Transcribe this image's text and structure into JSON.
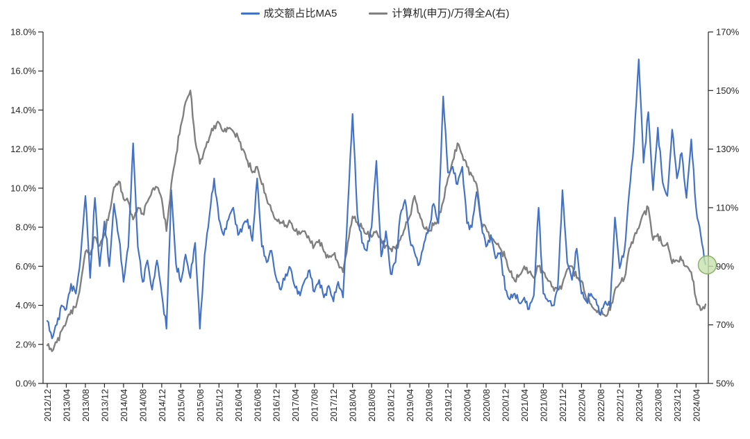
{
  "chart_data": {
    "type": "line",
    "title": "",
    "legend_position": "top",
    "gridlines": false,
    "background": "#ffffff",
    "axis_color": "#262626",
    "label_color": "#262626",
    "categories": [
      "2012/12",
      "2013/01",
      "2013/02",
      "2013/03",
      "2013/04",
      "2013/05",
      "2013/06",
      "2013/07",
      "2013/08",
      "2013/09",
      "2013/10",
      "2013/11",
      "2013/12",
      "2014/01",
      "2014/02",
      "2014/03",
      "2014/04",
      "2014/05",
      "2014/06",
      "2014/07",
      "2014/08",
      "2014/09",
      "2014/10",
      "2014/11",
      "2014/12",
      "2015/01",
      "2015/02",
      "2015/03",
      "2015/04",
      "2015/05",
      "2015/06",
      "2015/07",
      "2015/08",
      "2015/09",
      "2015/10",
      "2015/11",
      "2015/12",
      "2016/01",
      "2016/02",
      "2016/03",
      "2016/04",
      "2016/05",
      "2016/06",
      "2016/07",
      "2016/08",
      "2016/09",
      "2016/10",
      "2016/11",
      "2016/12",
      "2017/01",
      "2017/02",
      "2017/03",
      "2017/04",
      "2017/05",
      "2017/06",
      "2017/07",
      "2017/08",
      "2017/09",
      "2017/10",
      "2017/11",
      "2017/12",
      "2018/01",
      "2018/02",
      "2018/03",
      "2018/04",
      "2018/05",
      "2018/06",
      "2018/07",
      "2018/08",
      "2018/09",
      "2018/10",
      "2018/11",
      "2018/12",
      "2019/01",
      "2019/02",
      "2019/03",
      "2019/04",
      "2019/05",
      "2019/06",
      "2019/07",
      "2019/08",
      "2019/09",
      "2019/10",
      "2019/11",
      "2019/12",
      "2020/01",
      "2020/02",
      "2020/03",
      "2020/04",
      "2020/05",
      "2020/06",
      "2020/07",
      "2020/08",
      "2020/09",
      "2020/10",
      "2020/11",
      "2020/12",
      "2021/01",
      "2021/02",
      "2021/03",
      "2021/04",
      "2021/05",
      "2021/06",
      "2021/07",
      "2021/08",
      "2021/09",
      "2021/10",
      "2021/11",
      "2021/12",
      "2022/01",
      "2022/02",
      "2022/03",
      "2022/04",
      "2022/05",
      "2022/06",
      "2022/07",
      "2022/08",
      "2022/09",
      "2022/10",
      "2022/11",
      "2022/12",
      "2023/01",
      "2023/02",
      "2023/03",
      "2023/04",
      "2023/05",
      "2023/06",
      "2023/07",
      "2023/08",
      "2023/09",
      "2023/10",
      "2023/11",
      "2023/12",
      "2024/01",
      "2024/02",
      "2024/03",
      "2024/04",
      "2024/05",
      "2024/06"
    ],
    "series": [
      {
        "name": "成交额占比MA5",
        "axis": "left",
        "color": "#4472C4",
        "stroke_width": 2.2,
        "values": [
          3.2,
          2.3,
          3.0,
          4.0,
          3.8,
          5.1,
          4.6,
          6.5,
          9.6,
          5.4,
          9.5,
          6.0,
          8.3,
          6.0,
          9.2,
          7.5,
          5.2,
          7.0,
          12.3,
          7.0,
          5.2,
          6.3,
          4.8,
          6.3,
          4.6,
          2.8,
          9.9,
          6.1,
          5.2,
          6.6,
          5.4,
          7.2,
          2.8,
          6.6,
          8.6,
          10.5,
          8.4,
          7.6,
          8.4,
          9.0,
          7.6,
          8.1,
          8.4,
          7.3,
          10.5,
          7.0,
          6.2,
          6.8,
          5.4,
          4.8,
          5.6,
          5.9,
          4.9,
          4.5,
          5.3,
          5.8,
          4.7,
          5.3,
          4.4,
          5.0,
          4.2,
          5.2,
          4.4,
          9.0,
          13.8,
          8.7,
          7.2,
          6.8,
          8.0,
          11.4,
          6.5,
          7.8,
          5.6,
          6.2,
          8.6,
          9.4,
          7.4,
          6.7,
          6.1,
          7.2,
          7.9,
          9.2,
          8.2,
          14.7,
          10.8,
          11.1,
          10.2,
          11.1,
          8.2,
          8.0,
          9.8,
          8.2,
          7.0,
          7.6,
          6.4,
          6.7,
          4.8,
          4.3,
          4.6,
          4.1,
          4.4,
          3.8,
          4.5,
          9.0,
          4.6,
          4.2,
          4.0,
          4.8,
          9.9,
          6.2,
          5.3,
          6.9,
          4.6,
          4.2,
          4.6,
          4.3,
          3.5,
          4.2,
          3.9,
          8.5,
          5.9,
          6.8,
          9.8,
          12.4,
          16.6,
          11.3,
          13.9,
          9.9,
          13.1,
          10.3,
          9.6,
          13.0,
          10.5,
          11.8,
          9.5,
          12.5,
          9.0,
          7.6,
          6.1
        ]
      },
      {
        "name": "计算机(申万)/万得全A(右)",
        "axis": "right",
        "color": "#7F7F7F",
        "stroke_width": 2.4,
        "values": [
          63,
          61,
          64,
          68,
          71,
          75,
          76,
          84,
          95,
          94,
          100,
          97,
          101,
          108,
          117,
          119,
          113,
          112,
          106,
          110,
          108,
          112,
          116,
          117,
          113,
          102,
          118,
          128,
          138,
          146,
          150,
          133,
          125,
          130,
          134,
          138,
          139,
          136,
          137,
          136,
          134,
          130,
          126,
          122,
          124,
          118,
          113,
          109,
          106,
          105,
          104,
          105,
          102,
          101,
          102,
          99,
          97,
          99,
          95,
          93,
          94,
          91,
          88,
          98,
          107,
          105,
          103,
          101,
          100,
          102,
          99,
          97,
          96,
          96,
          99,
          103,
          107,
          114,
          108,
          103,
          102,
          104,
          106,
          112,
          120,
          126,
          132,
          128,
          124,
          121,
          118,
          105,
          103,
          100,
          98,
          96,
          93,
          88,
          85,
          87,
          90,
          88,
          86,
          90,
          88,
          85,
          83,
          82,
          84,
          89,
          90,
          86,
          85,
          79,
          77,
          75,
          74,
          73,
          75,
          82,
          84,
          86,
          96,
          100,
          103,
          108,
          110,
          99,
          101,
          97,
          98,
          91,
          92,
          92,
          90,
          88,
          79,
          75,
          77
        ]
      }
    ],
    "left_axis": {
      "min": 0,
      "max": 18,
      "step": 2,
      "labels": [
        "0.0%",
        "2.0%",
        "4.0%",
        "6.0%",
        "8.0%",
        "10.0%",
        "12.0%",
        "14.0%",
        "16.0%",
        "18.0%"
      ]
    },
    "right_axis": {
      "min": 50,
      "max": 170,
      "step": 20,
      "labels": [
        "50%",
        "70%",
        "90%",
        "110%",
        "130%",
        "150%",
        "170%"
      ]
    },
    "x_tick_labels": [
      "2012/12",
      "2013/04",
      "2013/08",
      "2013/12",
      "2014/04",
      "2014/08",
      "2014/12",
      "2015/04",
      "2015/08",
      "2015/12",
      "2016/04",
      "2016/08",
      "2016/12",
      "2017/04",
      "2017/08",
      "2017/12",
      "2018/04",
      "2018/08",
      "2018/12",
      "2019/04",
      "2019/08",
      "2019/12",
      "2020/04",
      "2020/08",
      "2020/12",
      "2021/04",
      "2021/08",
      "2021/12",
      "2022/04",
      "2022/08",
      "2022/12",
      "2023/04",
      "2023/08",
      "2023/12",
      "2024/04"
    ],
    "x_tick_every": 4,
    "annotation": {
      "type": "highlight-circle",
      "at_category": "2024/06",
      "right_axis_value": 90,
      "fill": "#C7E1AC",
      "fill_opacity": 0.8,
      "stroke": "#89B068",
      "radius": 13
    }
  },
  "legend": {
    "items": [
      {
        "label": "成交额占比MA5",
        "color": "#4472C4"
      },
      {
        "label": "计算机(申万)/万得全A(右)",
        "color": "#7F7F7F"
      }
    ]
  }
}
